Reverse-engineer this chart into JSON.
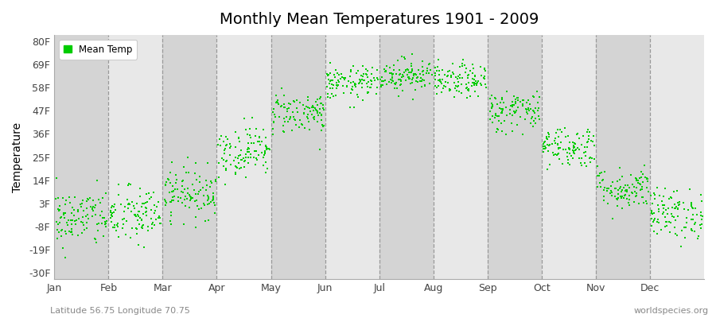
{
  "title": "Monthly Mean Temperatures 1901 - 2009",
  "ylabel": "Temperature",
  "bottom_left_text": "Latitude 56.75 Longitude 70.75",
  "bottom_right_text": "worldspecies.org",
  "legend_label": "Mean Temp",
  "dot_color": "#00CC00",
  "dot_size": 3.5,
  "background_color": "#ffffff",
  "plot_bg_color": "#e8e8e8",
  "alt_band_color": "#d4d4d4",
  "yticks": [
    -30,
    -19,
    -8,
    3,
    14,
    25,
    36,
    47,
    58,
    69,
    80
  ],
  "ytick_labels": [
    "-30F",
    "-19F",
    "-8F",
    "3F",
    "14F",
    "25F",
    "36F",
    "47F",
    "58F",
    "69F",
    "80F"
  ],
  "months": [
    "Jan",
    "Feb",
    "Mar",
    "Apr",
    "May",
    "Jun",
    "Jul",
    "Aug",
    "Sep",
    "Oct",
    "Nov",
    "Dec"
  ],
  "ylim": [
    -33,
    83
  ],
  "xlim": [
    0,
    12
  ],
  "n_years": 109,
  "mean_temps_F": [
    -4,
    -3,
    8,
    28,
    46,
    60,
    64,
    61,
    47,
    30,
    10,
    -2
  ],
  "std_temps_F": [
    7,
    7,
    6,
    6,
    5,
    4,
    4,
    4,
    5,
    5,
    5,
    6
  ],
  "seed": 42
}
